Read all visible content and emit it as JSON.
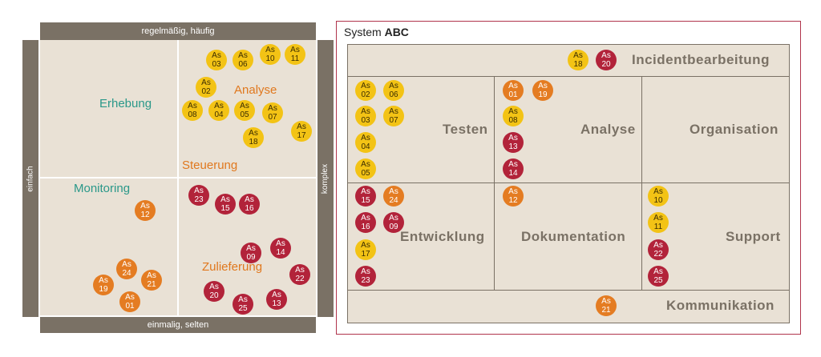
{
  "left": {
    "top_label": "regelmäßig, häufig",
    "bottom_label": "einmalig, selten",
    "left_label": "einfach",
    "right_label": "komplex",
    "quadrants": {
      "erhebung": "Erhebung",
      "analyse": "Analyse",
      "steuerung": "Steuerung",
      "monitoring": "Monitoring",
      "zulieferung": "Zulieferung"
    },
    "dots": [
      {
        "t": "As",
        "n": "03",
        "c": "yellow"
      },
      {
        "t": "As",
        "n": "06",
        "c": "yellow"
      },
      {
        "t": "As",
        "n": "10",
        "c": "yellow"
      },
      {
        "t": "As",
        "n": "11",
        "c": "yellow"
      },
      {
        "t": "As",
        "n": "02",
        "c": "yellow"
      },
      {
        "t": "As",
        "n": "08",
        "c": "yellow"
      },
      {
        "t": "As",
        "n": "04",
        "c": "yellow"
      },
      {
        "t": "As",
        "n": "05",
        "c": "yellow"
      },
      {
        "t": "As",
        "n": "07",
        "c": "yellow"
      },
      {
        "t": "As",
        "n": "17",
        "c": "yellow"
      },
      {
        "t": "As",
        "n": "18",
        "c": "yellow"
      },
      {
        "t": "As",
        "n": "12",
        "c": "orange"
      },
      {
        "t": "As",
        "n": "24",
        "c": "orange"
      },
      {
        "t": "As",
        "n": "19",
        "c": "orange"
      },
      {
        "t": "As",
        "n": "21",
        "c": "orange"
      },
      {
        "t": "As",
        "n": "01",
        "c": "orange"
      },
      {
        "t": "As",
        "n": "23",
        "c": "red"
      },
      {
        "t": "As",
        "n": "15",
        "c": "red"
      },
      {
        "t": "As",
        "n": "16",
        "c": "red"
      },
      {
        "t": "As",
        "n": "09",
        "c": "red"
      },
      {
        "t": "As",
        "n": "14",
        "c": "red"
      },
      {
        "t": "As",
        "n": "22",
        "c": "red"
      },
      {
        "t": "As",
        "n": "20",
        "c": "red"
      },
      {
        "t": "As",
        "n": "25",
        "c": "red"
      },
      {
        "t": "As",
        "n": "13",
        "c": "red"
      }
    ]
  },
  "right": {
    "system_prefix": "System",
    "system_name": "ABC",
    "cells": {
      "incident": "Incidentbearbeitung",
      "testen": "Testen",
      "analyse": "Analyse",
      "organisation": "Organisation",
      "entwicklung": "Entwicklung",
      "dokumentation": "Dokumentation",
      "support": "Support",
      "kommunikation": "Kommunikation"
    },
    "dots": [
      {
        "t": "As",
        "n": "18",
        "c": "yellow"
      },
      {
        "t": "As",
        "n": "20",
        "c": "red"
      },
      {
        "t": "As",
        "n": "02",
        "c": "yellow"
      },
      {
        "t": "As",
        "n": "06",
        "c": "yellow"
      },
      {
        "t": "As",
        "n": "03",
        "c": "yellow"
      },
      {
        "t": "As",
        "n": "07",
        "c": "yellow"
      },
      {
        "t": "As",
        "n": "04",
        "c": "yellow"
      },
      {
        "t": "As",
        "n": "05",
        "c": "yellow"
      },
      {
        "t": "As",
        "n": "01",
        "c": "orange"
      },
      {
        "t": "As",
        "n": "19",
        "c": "orange"
      },
      {
        "t": "As",
        "n": "08",
        "c": "yellow"
      },
      {
        "t": "As",
        "n": "13",
        "c": "red"
      },
      {
        "t": "As",
        "n": "14",
        "c": "red"
      },
      {
        "t": "As",
        "n": "15",
        "c": "red"
      },
      {
        "t": "As",
        "n": "24",
        "c": "orange"
      },
      {
        "t": "As",
        "n": "16",
        "c": "red"
      },
      {
        "t": "As",
        "n": "09",
        "c": "red"
      },
      {
        "t": "As",
        "n": "17",
        "c": "yellow"
      },
      {
        "t": "As",
        "n": "23",
        "c": "red"
      },
      {
        "t": "As",
        "n": "12",
        "c": "orange"
      },
      {
        "t": "As",
        "n": "10",
        "c": "yellow"
      },
      {
        "t": "As",
        "n": "11",
        "c": "yellow"
      },
      {
        "t": "As",
        "n": "22",
        "c": "red"
      },
      {
        "t": "As",
        "n": "25",
        "c": "red"
      },
      {
        "t": "As",
        "n": "21",
        "c": "orange"
      }
    ]
  }
}
